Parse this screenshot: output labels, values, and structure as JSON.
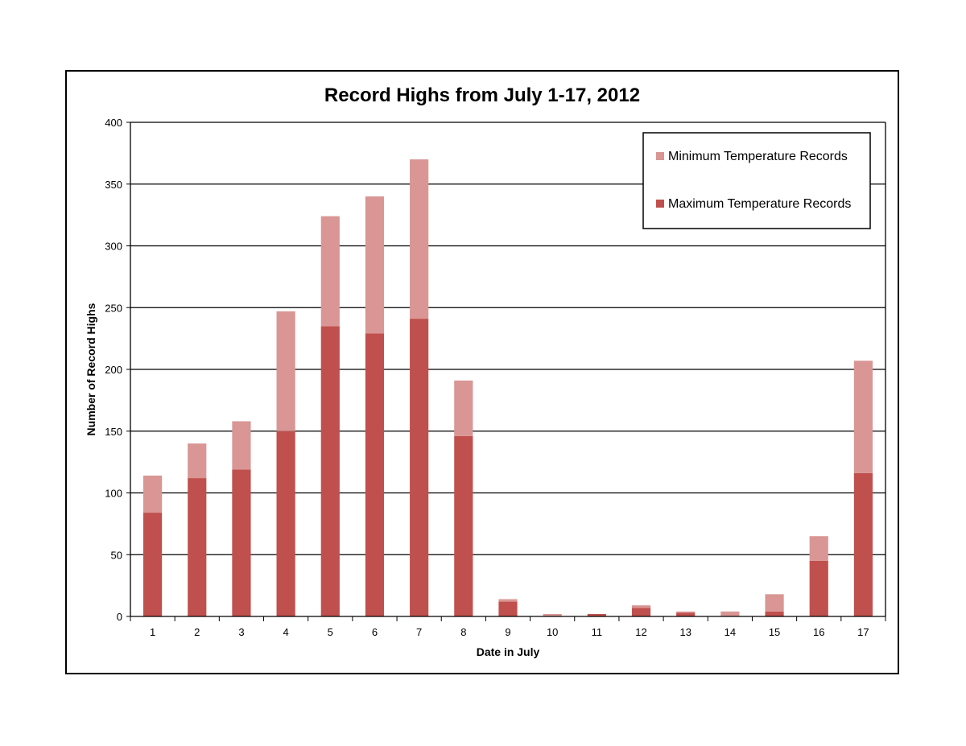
{
  "chart_data": {
    "type": "bar",
    "stacked": true,
    "title": "Record Highs from July 1-17, 2012",
    "xlabel": "Date in July",
    "ylabel": "Number of Record Highs",
    "ylim": [
      0,
      400
    ],
    "yticks": [
      0,
      50,
      100,
      150,
      200,
      250,
      300,
      350,
      400
    ],
    "grid": true,
    "legend_position": "top-right",
    "categories": [
      "1",
      "2",
      "3",
      "4",
      "5",
      "6",
      "7",
      "8",
      "9",
      "10",
      "11",
      "12",
      "13",
      "14",
      "15",
      "16",
      "17"
    ],
    "series": [
      {
        "name": "Maximum Temperature Records",
        "color": "#c0504d",
        "values": [
          84,
          112,
          119,
          150,
          235,
          229,
          241,
          146,
          12,
          0,
          2,
          7,
          3,
          0,
          4,
          45,
          116
        ]
      },
      {
        "name": "Minimum Temperature Records",
        "color": "#d99694",
        "values": [
          30,
          28,
          39,
          97,
          89,
          111,
          129,
          45,
          2,
          2,
          0,
          2,
          1,
          4,
          14,
          20,
          91
        ]
      }
    ],
    "legend_order": [
      "Minimum Temperature Records",
      "Maximum Temperature Records"
    ]
  }
}
